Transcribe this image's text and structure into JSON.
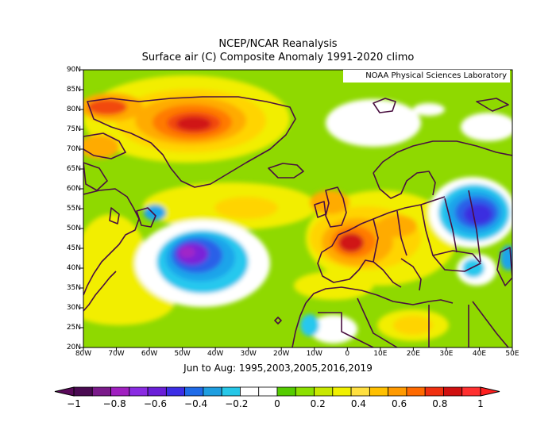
{
  "title_line1": "NCEP/NCAR Reanalysis",
  "title_line2": "Surface air (C) Composite Anomaly 1991-2020 climo",
  "credit": "NOAA Physical Sciences Laboratory",
  "subtitle": "Jun to Aug: 1995,2003,2005,2016,2019",
  "lat_labels": [
    "90N",
    "85N",
    "80N",
    "75N",
    "70N",
    "65N",
    "60N",
    "55N",
    "50N",
    "45N",
    "40N",
    "35N",
    "30N",
    "25N",
    "20N"
  ],
  "lon_labels": [
    "80W",
    "70W",
    "60W",
    "50W",
    "40W",
    "30W",
    "20W",
    "10W",
    "0",
    "10E",
    "20E",
    "30E",
    "40E",
    "50E"
  ],
  "colorbar": {
    "labels": [
      "-1",
      "-0.8",
      "-0.6",
      "-0.4",
      "-0.2",
      "0",
      "0.2",
      "0.4",
      "0.6",
      "0.8",
      "1"
    ],
    "colors": [
      "#4a0a52",
      "#7a1a8a",
      "#a020c0",
      "#8a2be2",
      "#6a1fd8",
      "#3c2ee6",
      "#1f6be8",
      "#1e9ee0",
      "#26c7e8",
      "#ffffff",
      "#ffffff",
      "#55cc00",
      "#8ce000",
      "#c8e800",
      "#f0f000",
      "#ffe040",
      "#ffc000",
      "#ff9a00",
      "#ff6a00",
      "#f03010",
      "#d01010",
      "#ff3030"
    ],
    "under_color": "#5a0a5a",
    "over_color": "#ff2020"
  },
  "map": {
    "background_color": "#8fd900",
    "colors": {
      "ocean_green": "#8fd900",
      "white": "#ffffff",
      "yellow": "#f2ee00",
      "gold": "#ffd400",
      "orange": "#ffab00",
      "dark_orange": "#ff7a00",
      "red_orange": "#f24a10",
      "red": "#d01818",
      "dark_red": "#b01010",
      "cyan": "#28c8ee",
      "light_blue": "#1ea4ea",
      "blue": "#2a60e8",
      "deep_blue": "#3a2ee0",
      "purple": "#7a20d8",
      "magenta": "#a028c8",
      "coast": "#4a1040"
    }
  }
}
